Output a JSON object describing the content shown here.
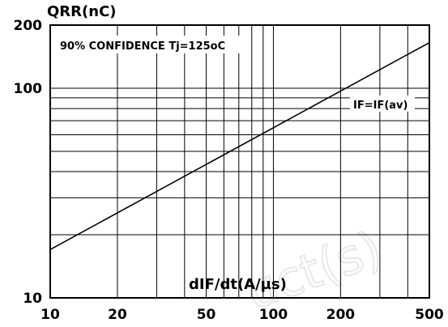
{
  "chart_data": {
    "type": "line",
    "xscale": "log",
    "yscale": "log",
    "xlim": [
      10,
      500
    ],
    "ylim": [
      10,
      200
    ],
    "xlabel": "dIF/dt(A/µs)",
    "ylabel": "QRR(nC)",
    "x_tick_labels": [
      "10",
      "20",
      "50",
      "100",
      "200",
      "500"
    ],
    "x_ticks": [
      10,
      20,
      50,
      100,
      200,
      500
    ],
    "y_tick_labels": [
      "200",
      "100",
      "10"
    ],
    "y_ticks": [
      200,
      100,
      10
    ],
    "grid": true,
    "annotations": {
      "confidence": "90% CONFIDENCE Tj=125oC",
      "series_label": "IF=IF(av)"
    },
    "series": [
      {
        "name": "IF=IF(av)",
        "x": [
          10,
          500
        ],
        "y": [
          17,
          165
        ]
      }
    ],
    "watermark": "uct(s)"
  },
  "colors": {
    "line": "#000000",
    "grid": "#000000",
    "background": "#ffffff"
  }
}
